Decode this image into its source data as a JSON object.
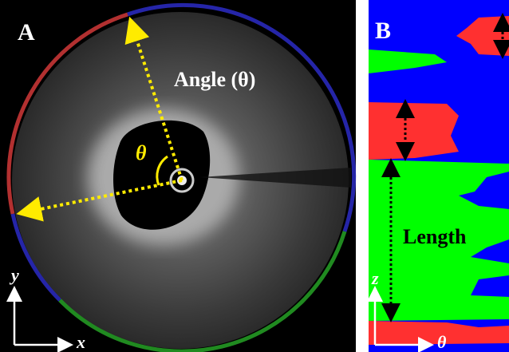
{
  "panels": [
    {
      "label": "A",
      "annotation": "Angle (θ)",
      "angle_symbol": "θ",
      "axes": {
        "vertical": "y",
        "horizontal": "x"
      }
    },
    {
      "label": "B",
      "annotation": "Length",
      "axes": {
        "vertical": "z",
        "horizontal": "θ"
      }
    }
  ]
}
